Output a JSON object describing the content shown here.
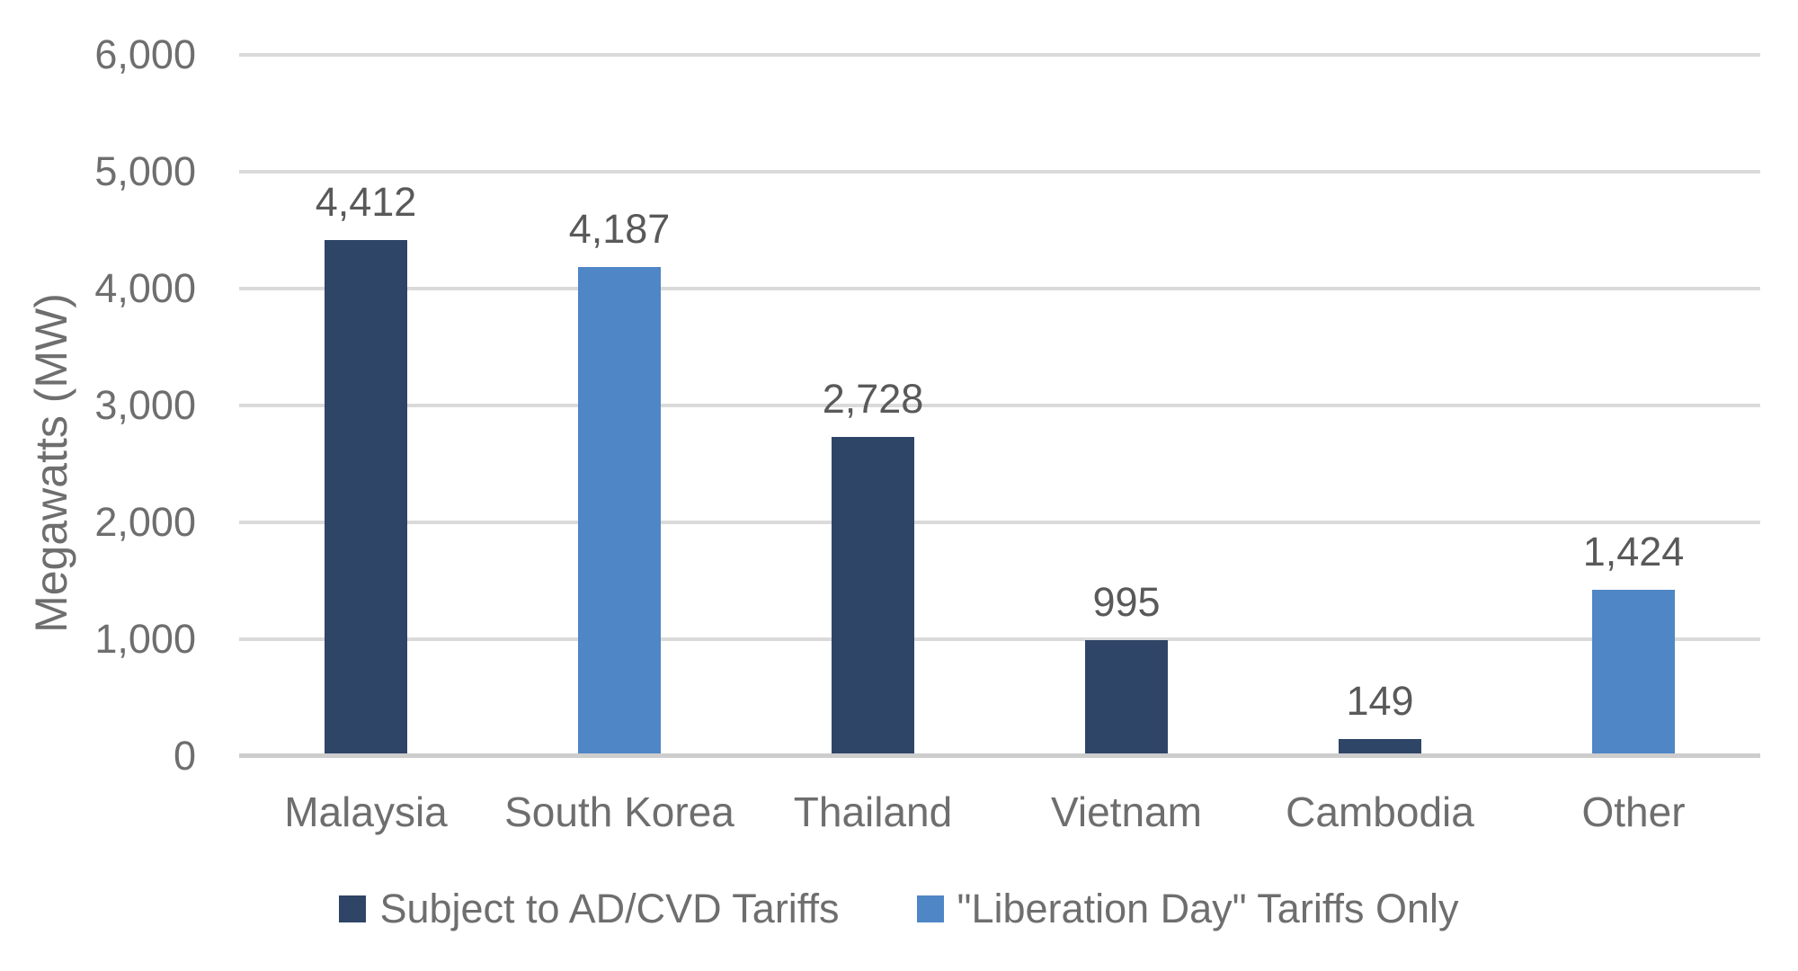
{
  "chart_data": {
    "type": "bar",
    "title": "",
    "xlabel": "",
    "ylabel": "Megawatts (MW)",
    "ylim": [
      0,
      6000
    ],
    "ytick_step": 1000,
    "ytick_labels": [
      "0",
      "1,000",
      "2,000",
      "3,000",
      "4,000",
      "5,000",
      "6,000"
    ],
    "grid": true,
    "legend_position": "bottom",
    "categories": [
      "Malaysia",
      "South Korea",
      "Thailand",
      "Vietnam",
      "Cambodia",
      "Other"
    ],
    "values": [
      4412,
      4187,
      2728,
      995,
      149,
      1424
    ],
    "bar_labels": [
      "4,412",
      "4,187",
      "2,728",
      "995",
      "149",
      "1,424"
    ],
    "series_of_bar": [
      0,
      1,
      0,
      0,
      0,
      1
    ],
    "series": [
      {
        "name": "Subject to AD/CVD Tariffs",
        "color": "#2F4567"
      },
      {
        "name": "\"Liberation Day\" Tariffs Only",
        "color": "#4E86C6"
      }
    ]
  },
  "colors": {
    "gridline": "#DADADA",
    "axis_baseline": "#CDCDCD",
    "axis_text": "#6E6E6E",
    "data_label_text": "#595959",
    "background": "#FFFFFF"
  }
}
